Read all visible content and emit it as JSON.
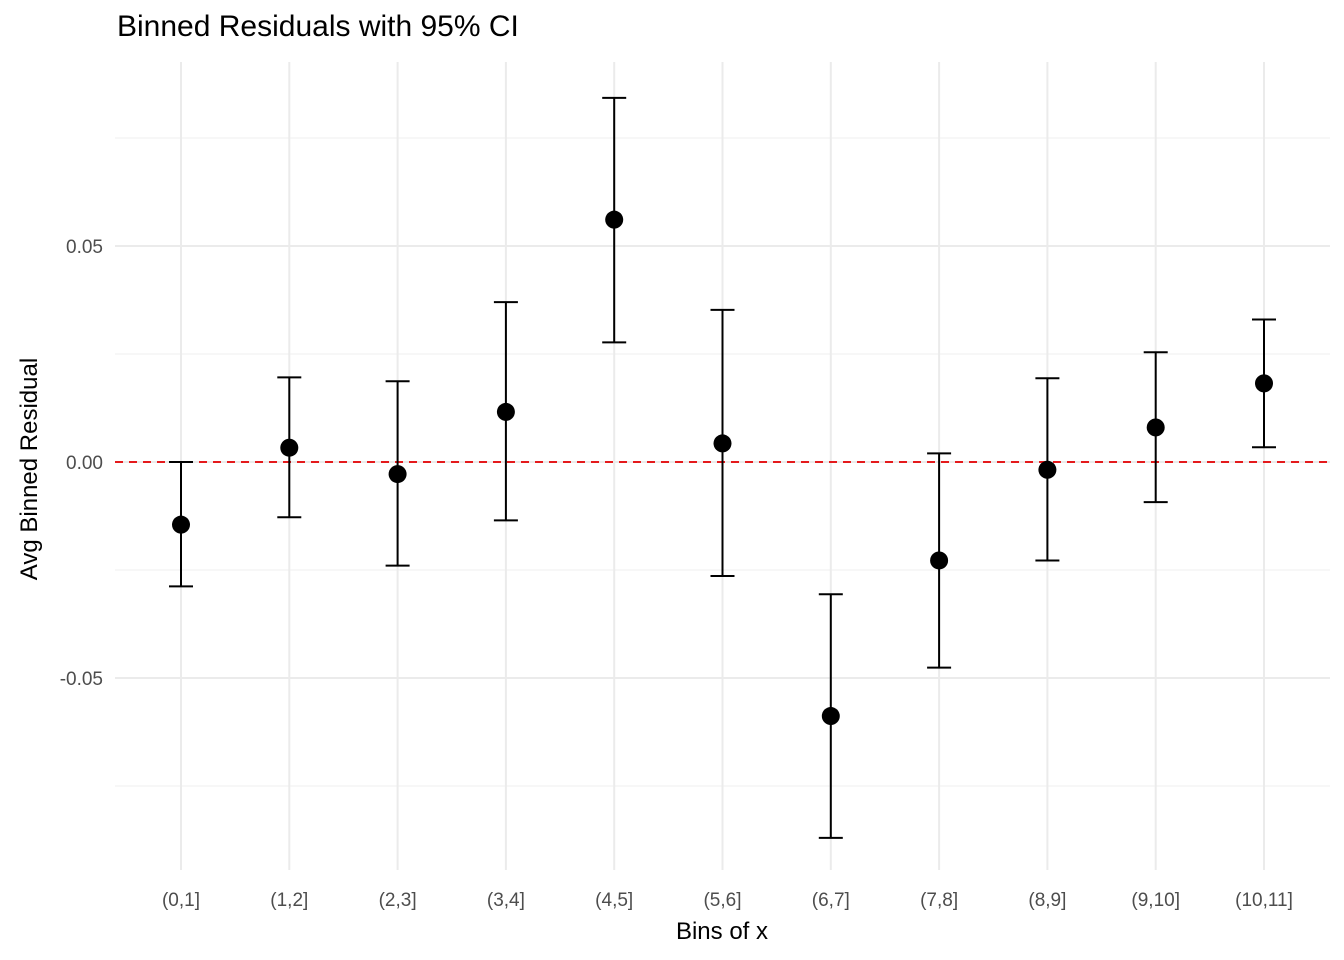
{
  "chart_data": {
    "type": "scatter",
    "title": "Binned Residuals with 95% CI",
    "xlabel": "Bins of x",
    "ylabel": "Avg Binned Residual",
    "categories": [
      "(0,1]",
      "(1,2]",
      "(2,3]",
      "(3,4]",
      "(4,5]",
      "(5,6]",
      "(6,7]",
      "(7,8]",
      "(8,9]",
      "(9,10]",
      "(10,11]"
    ],
    "values": [
      -0.0145,
      0.0033,
      -0.0028,
      0.0116,
      0.0561,
      0.0043,
      -0.0588,
      -0.0228,
      -0.0018,
      0.008,
      0.0182
    ],
    "ci_lower": [
      -0.0288,
      -0.0128,
      -0.024,
      -0.0135,
      0.0277,
      -0.0264,
      -0.087,
      -0.0476,
      -0.0228,
      -0.0093,
      0.0034
    ],
    "ci_upper": [
      0.0,
      0.0196,
      0.0187,
      0.037,
      0.0843,
      0.0352,
      -0.0306,
      0.002,
      0.0194,
      0.0254,
      0.033
    ],
    "ylim": [
      -0.095,
      0.093
    ],
    "y_ticks": [
      "-0.05",
      "0.00",
      "0.05"
    ],
    "y_tick_values": [
      -0.05,
      0.0,
      0.05
    ],
    "reference_line": {
      "y": 0.0,
      "style": "dashed",
      "color": "#e41a1c"
    },
    "point_color": "#000000",
    "grid": true
  }
}
